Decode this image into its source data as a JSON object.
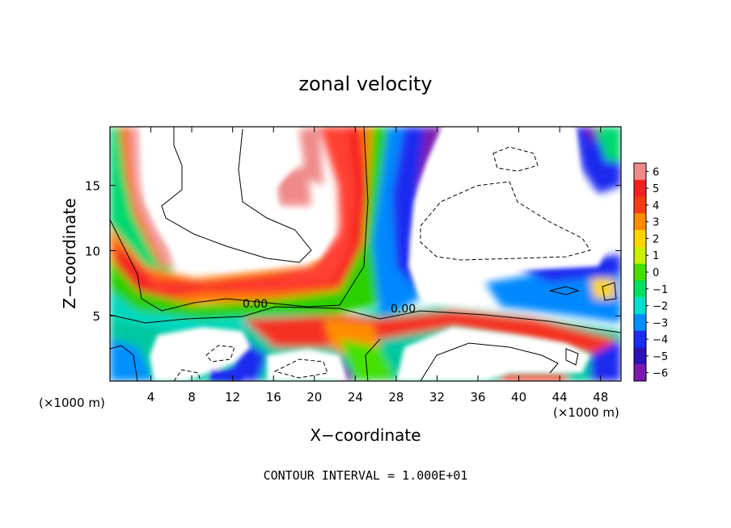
{
  "chart_data": {
    "type": "heatmap",
    "title": "zonal velocity",
    "xlabel": "X−coordinate",
    "ylabel": "Z−coordinate",
    "x_unit_left": "(×1000 m)",
    "x_unit_right": "(×1000 m)",
    "xlim": [
      0,
      50
    ],
    "ylim": [
      0,
      19.5
    ],
    "x_ticks": [
      4,
      8,
      12,
      16,
      20,
      24,
      28,
      32,
      36,
      40,
      44,
      48
    ],
    "y_ticks": [
      5,
      10,
      15
    ],
    "colorbar": {
      "levels": [
        6,
        5,
        4,
        3,
        2,
        1,
        0,
        -1,
        -2,
        -3,
        -4,
        -5,
        -6
      ],
      "labels": [
        "6",
        "5",
        "4",
        "3",
        "2",
        "1",
        "0",
        "−1",
        "−2",
        "−3",
        "−4",
        "−5",
        "−6"
      ],
      "colors": [
        "#f08a8a",
        "#f22020",
        "#f53d10",
        "#ff8c00",
        "#ffd500",
        "#c8f000",
        "#44e000",
        "#00e060",
        "#00e0d0",
        "#0090ff",
        "#1d2cf0",
        "#2a14b8",
        "#7a1ab0"
      ]
    },
    "contour_labels": [
      {
        "text": "0.00",
        "x": 13.5,
        "z": 6.0
      },
      {
        "text": "0.00",
        "x": 26.7,
        "z": 5.7
      }
    ],
    "footnote": "CONTOUR INTERVAL = 1.000E+01",
    "grid": false,
    "colorbar_position": "right"
  }
}
